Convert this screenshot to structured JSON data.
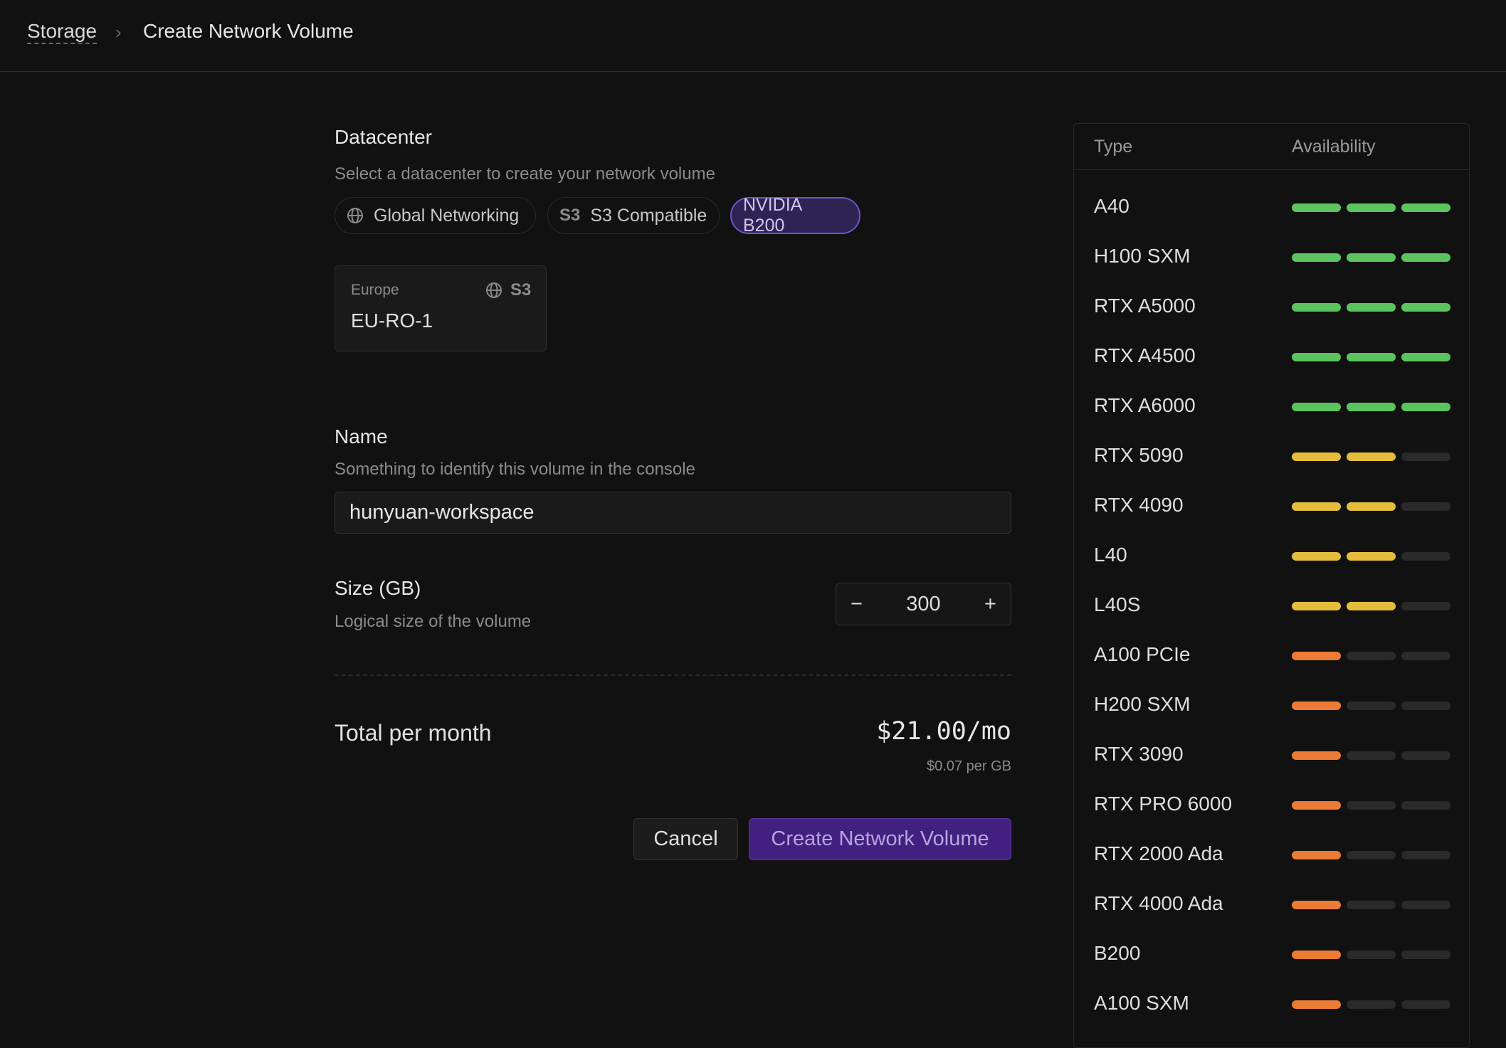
{
  "breadcrumb": {
    "parent": "Storage",
    "current": "Create Network Volume"
  },
  "datacenter": {
    "label": "Datacenter",
    "subtitle": "Select a datacenter to create your network volume",
    "filters": [
      {
        "label": "Global Networking",
        "icon": "globe-icon",
        "selected": false
      },
      {
        "label": "S3 Compatible",
        "icon": "S3",
        "selected": false
      },
      {
        "label": "NVIDIA B200",
        "selected": true
      }
    ],
    "option": {
      "region": "Europe",
      "name": "EU-RO-1",
      "badge": "S3"
    }
  },
  "name": {
    "label": "Name",
    "subtitle": "Something to identify this volume in the console",
    "value": "hunyuan-workspace"
  },
  "size": {
    "label": "Size (GB)",
    "subtitle": "Logical size of the volume",
    "value": "300",
    "minus": "−",
    "plus": "+"
  },
  "total": {
    "label": "Total per month",
    "price": "$21.00/mo",
    "per_gb": "$0.07 per GB"
  },
  "actions": {
    "cancel": "Cancel",
    "create": "Create Network Volume"
  },
  "colors": {
    "high": "#5cc45f",
    "medium": "#e5bd3c",
    "low": "#ec7c35",
    "empty": "#2a2a2a",
    "accent": "#41207f"
  },
  "availability": {
    "headers": {
      "type": "Type",
      "availability": "Availability"
    },
    "rows": [
      {
        "type": "A40",
        "level": 3
      },
      {
        "type": "H100 SXM",
        "level": 3
      },
      {
        "type": "RTX A5000",
        "level": 3
      },
      {
        "type": "RTX A4500",
        "level": 3
      },
      {
        "type": "RTX A6000",
        "level": 3
      },
      {
        "type": "RTX 5090",
        "level": 2
      },
      {
        "type": "RTX 4090",
        "level": 2
      },
      {
        "type": "L40",
        "level": 2
      },
      {
        "type": "L40S",
        "level": 2
      },
      {
        "type": "A100 PCIe",
        "level": 1
      },
      {
        "type": "H200 SXM",
        "level": 1
      },
      {
        "type": "RTX 3090",
        "level": 1
      },
      {
        "type": "RTX PRO 6000",
        "level": 1
      },
      {
        "type": "RTX 2000 Ada",
        "level": 1
      },
      {
        "type": "RTX 4000 Ada",
        "level": 1
      },
      {
        "type": "B200",
        "level": 1
      },
      {
        "type": "A100 SXM",
        "level": 1
      }
    ]
  }
}
